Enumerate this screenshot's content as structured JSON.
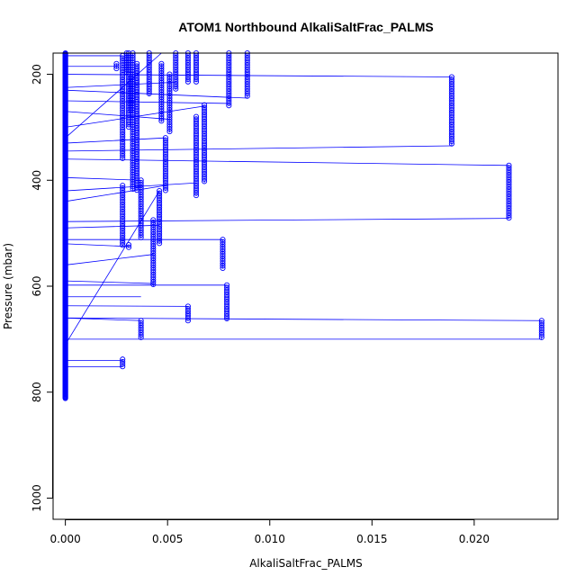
{
  "chart_data": {
    "type": "scatter",
    "title": "ATOM1 Northbound AlkaliSaltFrac_PALMS",
    "xlabel": "AlkaliSaltFrac_PALMS",
    "ylabel": "Pressure (mbar)",
    "xlim": [
      -0.0006,
      0.0241
    ],
    "ylim": [
      1040,
      160
    ],
    "y_reversed": true,
    "x_ticks": [
      "0.000",
      "0.005",
      "0.010",
      "0.015",
      "0.020"
    ],
    "y_ticks": [
      "200",
      "400",
      "600",
      "800",
      "1000"
    ],
    "grid": false,
    "point_style": "open-circle",
    "connected": true,
    "series_color": "#0000ff",
    "zero_profile": {
      "x": 0.0,
      "y_from": 160,
      "y_to": 812
    },
    "profiles": [
      {
        "x": 0.0189,
        "y_start": 205,
        "y_end": 335
      },
      {
        "x": 0.0217,
        "y_start": 372,
        "y_end": 472
      },
      {
        "x": 0.0233,
        "y_start": 665,
        "y_end": 700
      },
      {
        "x": 0.008,
        "y_start": 160,
        "y_end": 260
      },
      {
        "x": 0.0089,
        "y_start": 160,
        "y_end": 245
      },
      {
        "x": 0.006,
        "y_start": 160,
        "y_end": 215
      },
      {
        "x": 0.0064,
        "y_start": 160,
        "y_end": 215
      },
      {
        "x": 0.0068,
        "y_start": 258,
        "y_end": 405
      },
      {
        "x": 0.0064,
        "y_start": 280,
        "y_end": 430
      },
      {
        "x": 0.0054,
        "y_start": 160,
        "y_end": 230
      },
      {
        "x": 0.0047,
        "y_start": 180,
        "y_end": 290
      },
      {
        "x": 0.0051,
        "y_start": 200,
        "y_end": 310
      },
      {
        "x": 0.0049,
        "y_start": 320,
        "y_end": 420
      },
      {
        "x": 0.0046,
        "y_start": 420,
        "y_end": 520
      },
      {
        "x": 0.0043,
        "y_start": 475,
        "y_end": 600
      },
      {
        "x": 0.0077,
        "y_start": 512,
        "y_end": 567
      },
      {
        "x": 0.0079,
        "y_start": 598,
        "y_end": 665
      },
      {
        "x": 0.006,
        "y_start": 638,
        "y_end": 665
      },
      {
        "x": 0.0037,
        "y_start": 665,
        "y_end": 700
      },
      {
        "x": 0.0028,
        "y_start": 738,
        "y_end": 752
      },
      {
        "x": 0.0028,
        "y_start": 410,
        "y_end": 525
      },
      {
        "x": 0.0028,
        "y_start": 165,
        "y_end": 360
      },
      {
        "x": 0.0033,
        "y_start": 160,
        "y_end": 420
      },
      {
        "x": 0.0035,
        "y_start": 180,
        "y_end": 420
      },
      {
        "x": 0.0037,
        "y_start": 400,
        "y_end": 510
      },
      {
        "x": 0.0041,
        "y_start": 160,
        "y_end": 240
      },
      {
        "x": 0.0031,
        "y_start": 160,
        "y_end": 300
      },
      {
        "x": 0.0025,
        "y_start": 180,
        "y_end": 190
      },
      {
        "x": 0.0031,
        "y_start": 522,
        "y_end": 528
      },
      {
        "x": 0.003,
        "y_start": 160,
        "y_end": 200
      },
      {
        "x": 0.0032,
        "y_start": 200,
        "y_end": 270
      }
    ],
    "connectors": [
      {
        "from": [
          0.0,
          200
        ],
        "to": [
          0.0189,
          205
        ]
      },
      {
        "from": [
          0.0189,
          335
        ],
        "to": [
          0.0,
          345
        ]
      },
      {
        "from": [
          0.0,
          360
        ],
        "to": [
          0.0217,
          372
        ]
      },
      {
        "from": [
          0.0217,
          472
        ],
        "to": [
          0.0,
          478
        ]
      },
      {
        "from": [
          0.0,
          660
        ],
        "to": [
          0.0233,
          665
        ]
      },
      {
        "from": [
          0.0233,
          700
        ],
        "to": [
          0.0,
          700
        ]
      },
      {
        "from": [
          0.0,
          320
        ],
        "to": [
          0.0047,
          160
        ]
      },
      {
        "from": [
          0.0,
          710
        ],
        "to": [
          0.0046,
          420
        ]
      },
      {
        "from": [
          0.0,
          512
        ],
        "to": [
          0.0077,
          512
        ]
      },
      {
        "from": [
          0.0,
          598
        ],
        "to": [
          0.0079,
          598
        ]
      },
      {
        "from": [
          0.0,
          637
        ],
        "to": [
          0.006,
          638
        ]
      },
      {
        "from": [
          0.0,
          660
        ],
        "to": [
          0.0037,
          665
        ]
      },
      {
        "from": [
          0.0,
          740
        ],
        "to": [
          0.0028,
          740
        ]
      },
      {
        "from": [
          0.0,
          752
        ],
        "to": [
          0.0028,
          752
        ]
      },
      {
        "from": [
          0.0,
          560
        ],
        "to": [
          0.0043,
          540
        ]
      },
      {
        "from": [
          0.0,
          520
        ],
        "to": [
          0.0031,
          525
        ]
      },
      {
        "from": [
          0.0,
          440
        ],
        "to": [
          0.0049,
          410
        ]
      },
      {
        "from": [
          0.0,
          420
        ],
        "to": [
          0.0064,
          405
        ]
      },
      {
        "from": [
          0.0,
          300
        ],
        "to": [
          0.0068,
          260
        ]
      },
      {
        "from": [
          0.0,
          250
        ],
        "to": [
          0.008,
          255
        ]
      },
      {
        "from": [
          0.0,
          230
        ],
        "to": [
          0.0089,
          245
        ]
      },
      {
        "from": [
          0.0,
          225
        ],
        "to": [
          0.0054,
          215
        ]
      },
      {
        "from": [
          0.0,
          185
        ],
        "to": [
          0.0025,
          185
        ]
      },
      {
        "from": [
          0.0,
          165
        ],
        "to": [
          0.0028,
          165
        ]
      },
      {
        "from": [
          0.0,
          270
        ],
        "to": [
          0.0051,
          285
        ]
      },
      {
        "from": [
          0.0,
          395
        ],
        "to": [
          0.0037,
          400
        ]
      },
      {
        "from": [
          0.0,
          590
        ],
        "to": [
          0.0043,
          595
        ]
      },
      {
        "from": [
          0.0,
          620
        ],
        "to": [
          0.0037,
          620
        ]
      },
      {
        "from": [
          0.0,
          490
        ],
        "to": [
          0.0046,
          485
        ]
      },
      {
        "from": [
          0.0,
          330
        ],
        "to": [
          0.0049,
          320
        ]
      }
    ]
  }
}
